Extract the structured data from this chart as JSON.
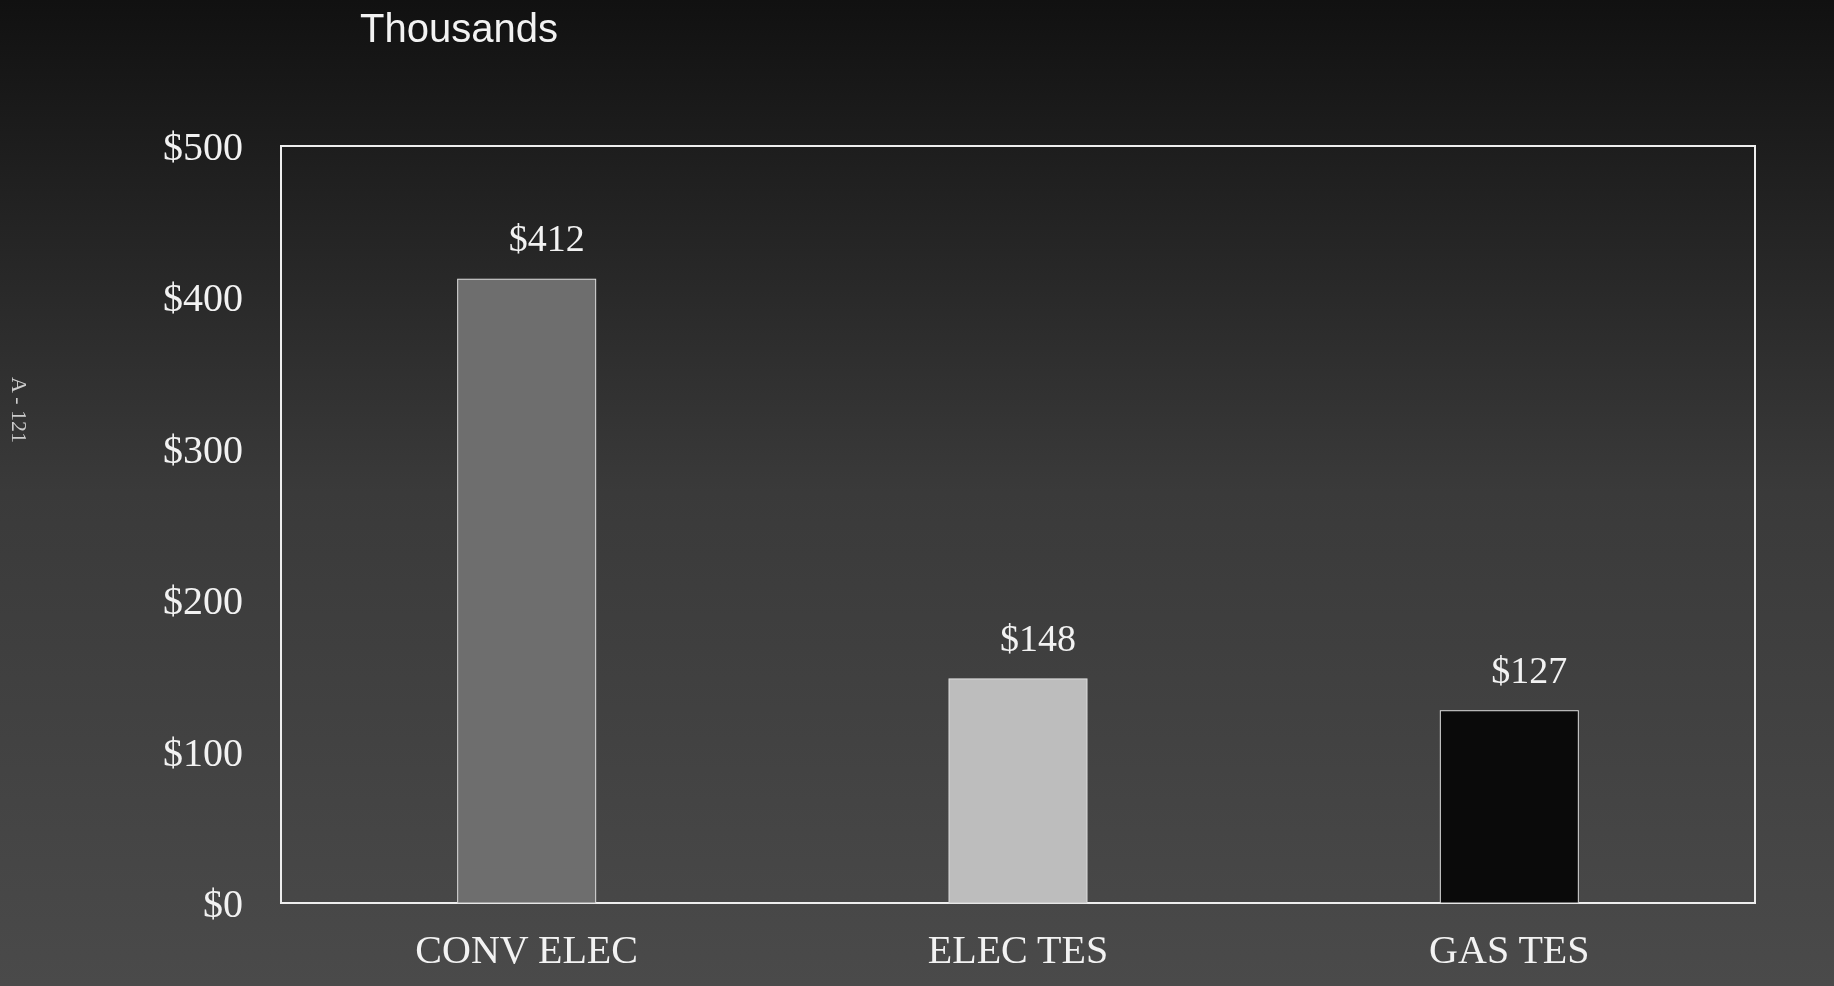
{
  "chart_data": {
    "type": "bar",
    "ylabel": "Thousands",
    "categories": [
      "CONV ELEC",
      "ELEC TES",
      "GAS TES"
    ],
    "values": [
      412,
      148,
      127
    ],
    "colors": [
      "#6e6e6e",
      "#bdbdbd",
      "#0a0a0a"
    ],
    "value_labels": [
      "$412",
      "$148",
      "$127"
    ],
    "ylim": [
      0,
      500
    ],
    "yticks": [
      {
        "value": 0,
        "label": "$0"
      },
      {
        "value": 100,
        "label": "$100"
      },
      {
        "value": 200,
        "label": "$200"
      },
      {
        "value": 300,
        "label": "$300"
      },
      {
        "value": 400,
        "label": "$400"
      },
      {
        "value": 500,
        "label": "$500"
      }
    ],
    "grid": false,
    "annotations": [
      "A - 121"
    ]
  }
}
